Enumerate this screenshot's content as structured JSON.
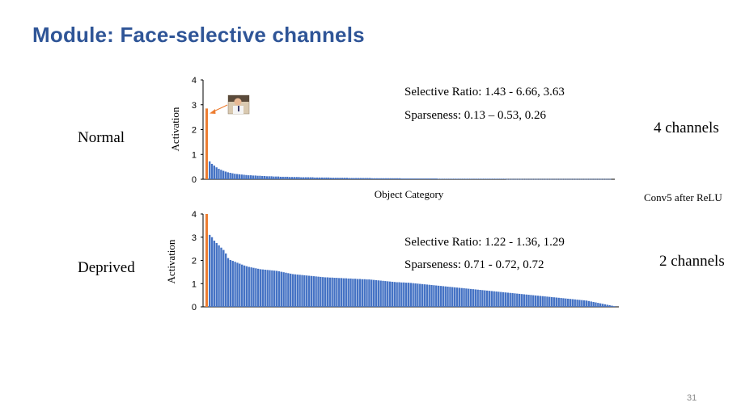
{
  "slide": {
    "title": "Module: Face-selective channels",
    "page_number": "31",
    "note": "Conv5 after ReLU"
  },
  "colors": {
    "title": "#2F5597",
    "bar": "#4472C4",
    "highlight": "#ED7D31"
  },
  "rows": [
    {
      "label": "Normal",
      "channels": "4 channels",
      "selective_ratio": "Selective Ratio: 1.43 - 6.66, 3.63",
      "sparseness": "Sparseness: 0.13 – 0.53, 0.26",
      "has_face_thumbnail": true
    },
    {
      "label": "Deprived",
      "channels": "2 channels",
      "selective_ratio": "Selective Ratio: 1.22 - 1.36, 1.29",
      "sparseness": "Sparseness: 0.71 - 0.72, 0.72",
      "has_face_thumbnail": false
    }
  ],
  "chart_data": [
    {
      "type": "bar",
      "title": "",
      "xlabel": "Object Category",
      "ylabel": "Activation",
      "ylim": [
        0,
        4
      ],
      "yticks": [
        "0",
        "1",
        "2",
        "3",
        "4"
      ],
      "highlight_series": {
        "name": "face",
        "value": 2.85
      },
      "sorted_descending": true,
      "values": [
        0.72,
        0.62,
        0.55,
        0.48,
        0.42,
        0.38,
        0.34,
        0.31,
        0.28,
        0.26,
        0.24,
        0.22,
        0.21,
        0.2,
        0.19,
        0.18,
        0.17,
        0.16,
        0.16,
        0.15,
        0.15,
        0.14,
        0.14,
        0.13,
        0.13,
        0.12,
        0.12,
        0.12,
        0.11,
        0.11,
        0.11,
        0.1,
        0.1,
        0.1,
        0.1,
        0.09,
        0.09,
        0.09,
        0.09,
        0.09,
        0.08,
        0.08,
        0.08,
        0.08,
        0.08,
        0.08,
        0.07,
        0.07,
        0.07,
        0.07,
        0.07,
        0.07,
        0.07,
        0.06,
        0.06,
        0.06,
        0.06,
        0.06,
        0.06,
        0.06,
        0.06,
        0.05,
        0.05,
        0.05,
        0.05,
        0.05,
        0.05,
        0.05,
        0.05,
        0.05,
        0.05,
        0.04,
        0.04,
        0.04,
        0.04,
        0.04,
        0.04,
        0.04,
        0.04,
        0.04,
        0.04,
        0.04,
        0.04,
        0.04,
        0.03,
        0.03,
        0.03,
        0.03,
        0.03,
        0.03,
        0.03,
        0.03,
        0.03,
        0.03,
        0.03,
        0.03,
        0.03,
        0.03,
        0.03,
        0.03,
        0.02,
        0.02,
        0.02,
        0.02,
        0.02,
        0.02,
        0.02,
        0.02,
        0.02,
        0.02,
        0.02,
        0.02,
        0.02,
        0.02,
        0.02,
        0.02,
        0.02,
        0.02,
        0.02,
        0.02,
        0.02,
        0.02,
        0.02,
        0.02,
        0.02,
        0.02,
        0.02,
        0.02,
        0.02,
        0.02,
        0.01,
        0.01,
        0.01,
        0.01,
        0.01,
        0.01,
        0.01,
        0.01,
        0.01,
        0.01,
        0.01,
        0.01,
        0.01,
        0.01,
        0.01,
        0.01,
        0.01,
        0.01,
        0.01,
        0.01,
        0.01,
        0.01,
        0.01,
        0.01,
        0.01,
        0.01,
        0.01,
        0.01,
        0.01,
        0.01,
        0.01,
        0.01,
        0.01,
        0.01,
        0.01,
        0.01,
        0.01,
        0.01,
        0.01,
        0.01,
        0.01,
        0.01,
        0.01,
        0.01,
        0.01,
        0.01
      ]
    },
    {
      "type": "bar",
      "title": "",
      "xlabel": "",
      "ylabel": "Activation",
      "ylim": [
        0,
        4
      ],
      "yticks": [
        "0",
        "1",
        "2",
        "3",
        "4"
      ],
      "highlight_series": {
        "name": "face",
        "value": 4.0
      },
      "sorted_descending": true,
      "values": [
        3.1,
        3.0,
        2.85,
        2.75,
        2.65,
        2.55,
        2.45,
        2.3,
        2.1,
        2.02,
        1.98,
        1.94,
        1.9,
        1.86,
        1.82,
        1.78,
        1.75,
        1.72,
        1.7,
        1.68,
        1.66,
        1.64,
        1.62,
        1.61,
        1.6,
        1.59,
        1.58,
        1.57,
        1.56,
        1.55,
        1.53,
        1.51,
        1.49,
        1.47,
        1.45,
        1.43,
        1.41,
        1.4,
        1.39,
        1.38,
        1.37,
        1.36,
        1.35,
        1.34,
        1.33,
        1.32,
        1.31,
        1.3,
        1.29,
        1.28,
        1.27,
        1.27,
        1.26,
        1.26,
        1.25,
        1.25,
        1.24,
        1.24,
        1.23,
        1.23,
        1.22,
        1.22,
        1.21,
        1.21,
        1.2,
        1.2,
        1.19,
        1.19,
        1.18,
        1.18,
        1.17,
        1.16,
        1.15,
        1.14,
        1.13,
        1.12,
        1.11,
        1.1,
        1.09,
        1.08,
        1.07,
        1.06,
        1.06,
        1.05,
        1.05,
        1.04,
        1.04,
        1.03,
        1.02,
        1.01,
        1.0,
        0.99,
        0.98,
        0.97,
        0.96,
        0.95,
        0.94,
        0.93,
        0.92,
        0.91,
        0.9,
        0.89,
        0.88,
        0.87,
        0.86,
        0.85,
        0.84,
        0.83,
        0.82,
        0.81,
        0.8,
        0.79,
        0.78,
        0.77,
        0.76,
        0.75,
        0.74,
        0.73,
        0.72,
        0.71,
        0.7,
        0.69,
        0.68,
        0.67,
        0.66,
        0.65,
        0.64,
        0.63,
        0.62,
        0.61,
        0.6,
        0.59,
        0.58,
        0.57,
        0.56,
        0.55,
        0.54,
        0.53,
        0.52,
        0.51,
        0.5,
        0.49,
        0.48,
        0.47,
        0.46,
        0.45,
        0.44,
        0.43,
        0.42,
        0.41,
        0.4,
        0.39,
        0.38,
        0.37,
        0.36,
        0.35,
        0.34,
        0.33,
        0.32,
        0.31,
        0.3,
        0.29,
        0.28,
        0.27,
        0.25,
        0.23,
        0.21,
        0.19,
        0.17,
        0.15,
        0.13,
        0.11,
        0.09,
        0.07,
        0.05,
        0.03
      ]
    }
  ]
}
